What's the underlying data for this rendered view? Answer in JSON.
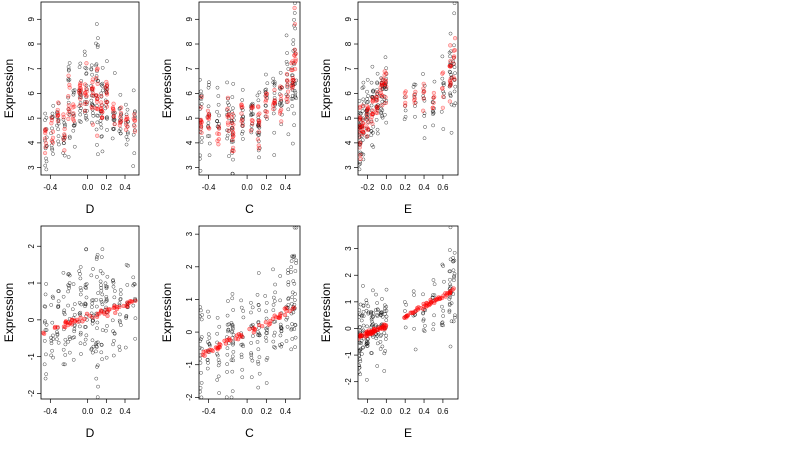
{
  "figure": {
    "background": "#ffffff",
    "colors": {
      "observed": "#000000",
      "fitted": "#ff0000"
    },
    "layout": "2x3 panel grid"
  },
  "chart_data": [
    {
      "id": "p1",
      "type": "scatter",
      "xlabel": "D",
      "ylabel": "Expression",
      "xlim": [
        -0.5,
        0.55
      ],
      "ylim": [
        2.7,
        9.7
      ],
      "xticks": [
        -0.4,
        0,
        0.2,
        0.4
      ],
      "xtick_labels": [
        "-0.4",
        "0.0",
        "0.2",
        "0.4"
      ],
      "yticks": [
        3,
        4,
        5,
        6,
        7,
        8,
        9
      ],
      "ytick_labels": [
        "3",
        "4",
        "5",
        "6",
        "7",
        "8",
        "9"
      ],
      "groups": [
        {
          "x": -0.45,
          "mean": 4.2,
          "sd": 0.8,
          "n": 14
        },
        {
          "x": -0.38,
          "mean": 4.6,
          "sd": 0.7,
          "n": 12
        },
        {
          "x": -0.32,
          "mean": 5.0,
          "sd": 0.6,
          "n": 12
        },
        {
          "x": -0.25,
          "mean": 4.4,
          "sd": 0.5,
          "n": 12
        },
        {
          "x": -0.2,
          "mean": 5.6,
          "sd": 0.9,
          "n": 15
        },
        {
          "x": -0.15,
          "mean": 5.2,
          "sd": 0.6,
          "n": 12
        },
        {
          "x": -0.08,
          "mean": 5.9,
          "sd": 0.7,
          "n": 18
        },
        {
          "x": -0.02,
          "mean": 6.0,
          "sd": 0.8,
          "n": 18
        },
        {
          "x": 0.05,
          "mean": 5.8,
          "sd": 0.8,
          "n": 18
        },
        {
          "x": 0.1,
          "mean": 6.2,
          "sd": 1.2,
          "n": 22
        },
        {
          "x": 0.15,
          "mean": 5.5,
          "sd": 0.8,
          "n": 18
        },
        {
          "x": 0.2,
          "mean": 5.8,
          "sd": 0.7,
          "n": 16
        },
        {
          "x": 0.28,
          "mean": 5.1,
          "sd": 0.6,
          "n": 14
        },
        {
          "x": 0.35,
          "mean": 5.0,
          "sd": 0.5,
          "n": 12
        },
        {
          "x": 0.42,
          "mean": 4.8,
          "sd": 0.5,
          "n": 12
        },
        {
          "x": 0.5,
          "mean": 4.8,
          "sd": 0.5,
          "n": 10
        }
      ],
      "fitted_sd": 0.3
    },
    {
      "id": "p2",
      "type": "scatter",
      "xlabel": "C",
      "ylabel": "Expression",
      "xlim": [
        -0.5,
        0.55
      ],
      "ylim": [
        2.7,
        9.7
      ],
      "xticks": [
        -0.4,
        0,
        0.2,
        0.4
      ],
      "xtick_labels": [
        "-0.4",
        "0.0",
        "0.2",
        "0.4"
      ],
      "yticks": [
        3,
        4,
        5,
        6,
        7,
        8,
        9
      ],
      "ytick_labels": [
        "3",
        "4",
        "5",
        "6",
        "7",
        "8",
        "9"
      ],
      "groups": [
        {
          "x": -0.48,
          "mean": 4.8,
          "sd": 0.8,
          "n": 18
        },
        {
          "x": -0.4,
          "mean": 5.0,
          "sd": 0.7,
          "n": 14
        },
        {
          "x": -0.3,
          "mean": 4.6,
          "sd": 0.7,
          "n": 12
        },
        {
          "x": -0.2,
          "mean": 5.0,
          "sd": 0.6,
          "n": 14
        },
        {
          "x": -0.15,
          "mean": 4.4,
          "sd": 0.9,
          "n": 22
        },
        {
          "x": -0.05,
          "mean": 5.0,
          "sd": 0.6,
          "n": 14
        },
        {
          "x": 0.05,
          "mean": 5.2,
          "sd": 0.7,
          "n": 14
        },
        {
          "x": 0.12,
          "mean": 4.8,
          "sd": 0.9,
          "n": 20
        },
        {
          "x": 0.2,
          "mean": 5.5,
          "sd": 0.6,
          "n": 14
        },
        {
          "x": 0.28,
          "mean": 5.5,
          "sd": 0.7,
          "n": 14
        },
        {
          "x": 0.35,
          "mean": 5.8,
          "sd": 0.7,
          "n": 14
        },
        {
          "x": 0.42,
          "mean": 6.2,
          "sd": 0.7,
          "n": 14
        },
        {
          "x": 0.47,
          "mean": 6.6,
          "sd": 1.1,
          "n": 18
        },
        {
          "x": 0.5,
          "mean": 7.2,
          "sd": 1.3,
          "n": 18
        }
      ],
      "fitted_sd": 0.3
    },
    {
      "id": "p3",
      "type": "scatter",
      "xlabel": "E",
      "ylabel": "Expression",
      "xlim": [
        -0.3,
        0.76
      ],
      "ylim": [
        2.7,
        9.7
      ],
      "xticks": [
        -0.2,
        0,
        0.2,
        0.4,
        0.6
      ],
      "xtick_labels": [
        "-0.2",
        "0.0",
        "0.2",
        "0.4",
        "0.6"
      ],
      "yticks": [
        3,
        4,
        5,
        6,
        7,
        8,
        9
      ],
      "ytick_labels": [
        "3",
        "4",
        "5",
        "6",
        "7",
        "8",
        "9"
      ],
      "groups": [
        {
          "x": -0.28,
          "mean": 4.5,
          "sd": 0.8,
          "n": 28
        },
        {
          "x": -0.25,
          "mean": 4.8,
          "sd": 0.7,
          "n": 18
        },
        {
          "x": -0.2,
          "mean": 5.0,
          "sd": 0.7,
          "n": 22
        },
        {
          "x": -0.15,
          "mean": 5.3,
          "sd": 0.7,
          "n": 20
        },
        {
          "x": -0.1,
          "mean": 5.6,
          "sd": 0.7,
          "n": 18
        },
        {
          "x": -0.05,
          "mean": 5.9,
          "sd": 0.7,
          "n": 18
        },
        {
          "x": -0.01,
          "mean": 6.2,
          "sd": 0.8,
          "n": 18
        },
        {
          "x": 0.2,
          "mean": 5.6,
          "sd": 0.5,
          "n": 5
        },
        {
          "x": 0.3,
          "mean": 5.8,
          "sd": 0.6,
          "n": 8
        },
        {
          "x": 0.4,
          "mean": 5.9,
          "sd": 0.6,
          "n": 10
        },
        {
          "x": 0.5,
          "mean": 5.5,
          "sd": 0.7,
          "n": 10
        },
        {
          "x": 0.6,
          "mean": 6.0,
          "sd": 0.8,
          "n": 10
        },
        {
          "x": 0.68,
          "mean": 6.6,
          "sd": 1.1,
          "n": 22
        },
        {
          "x": 0.72,
          "mean": 7.5,
          "sd": 1.2,
          "n": 14
        }
      ],
      "fitted_sd": 0.3
    },
    {
      "id": "p4",
      "type": "scatter",
      "xlabel": "D",
      "ylabel": "Expression",
      "xlim": [
        -0.5,
        0.55
      ],
      "ylim": [
        -2.15,
        2.55
      ],
      "xticks": [
        -0.4,
        0,
        0.2,
        0.4
      ],
      "xtick_labels": [
        "-0.4",
        "0.0",
        "0.2",
        "0.4"
      ],
      "yticks": [
        -2,
        -1,
        0,
        1,
        2
      ],
      "ytick_labels": [
        "-2",
        "-1",
        "0",
        "1",
        "2"
      ],
      "groups": [
        {
          "x": -0.45,
          "mean": -0.3,
          "sd": 0.8,
          "n": 14
        },
        {
          "x": -0.38,
          "mean": -0.2,
          "sd": 0.7,
          "n": 12
        },
        {
          "x": -0.32,
          "mean": -0.2,
          "sd": 0.7,
          "n": 12
        },
        {
          "x": -0.25,
          "mean": 0.0,
          "sd": 0.6,
          "n": 12
        },
        {
          "x": -0.2,
          "mean": 0.1,
          "sd": 0.8,
          "n": 15
        },
        {
          "x": -0.15,
          "mean": 0.0,
          "sd": 0.6,
          "n": 12
        },
        {
          "x": -0.08,
          "mean": 0.1,
          "sd": 0.7,
          "n": 18
        },
        {
          "x": -0.02,
          "mean": 0.1,
          "sd": 0.8,
          "n": 18
        },
        {
          "x": 0.05,
          "mean": 0.1,
          "sd": 0.8,
          "n": 18
        },
        {
          "x": 0.1,
          "mean": 0.2,
          "sd": 0.9,
          "n": 22
        },
        {
          "x": 0.15,
          "mean": 0.2,
          "sd": 0.8,
          "n": 18
        },
        {
          "x": 0.2,
          "mean": 0.3,
          "sd": 0.7,
          "n": 16
        },
        {
          "x": 0.28,
          "mean": 0.3,
          "sd": 0.6,
          "n": 14
        },
        {
          "x": 0.35,
          "mean": 0.3,
          "sd": 0.6,
          "n": 12
        },
        {
          "x": 0.42,
          "mean": 0.4,
          "sd": 0.5,
          "n": 12
        },
        {
          "x": 0.5,
          "mean": 0.4,
          "sd": 0.5,
          "n": 10
        }
      ],
      "fitted_line": {
        "x": [
          -0.48,
          0.52
        ],
        "y": [
          -0.35,
          0.5
        ]
      },
      "fitted_sd": 0.05
    },
    {
      "id": "p5",
      "type": "scatter",
      "xlabel": "C",
      "ylabel": "Expression",
      "xlim": [
        -0.5,
        0.55
      ],
      "ylim": [
        -2.05,
        3.25
      ],
      "xticks": [
        -0.4,
        0,
        0.2,
        0.4
      ],
      "xtick_labels": [
        "-0.4",
        "0.0",
        "0.2",
        "0.4"
      ],
      "yticks": [
        -2,
        -1,
        0,
        1,
        2,
        3
      ],
      "ytick_labels": [
        "-2",
        "-1",
        "0",
        "1",
        "2",
        "3"
      ],
      "groups": [
        {
          "x": -0.48,
          "mean": -0.6,
          "sd": 0.8,
          "n": 18
        },
        {
          "x": -0.4,
          "mean": -0.5,
          "sd": 0.7,
          "n": 14
        },
        {
          "x": -0.3,
          "mean": -0.4,
          "sd": 0.7,
          "n": 12
        },
        {
          "x": -0.2,
          "mean": -0.3,
          "sd": 0.6,
          "n": 14
        },
        {
          "x": -0.15,
          "mean": -0.2,
          "sd": 0.8,
          "n": 22
        },
        {
          "x": -0.05,
          "mean": -0.1,
          "sd": 0.6,
          "n": 14
        },
        {
          "x": 0.05,
          "mean": 0.1,
          "sd": 0.7,
          "n": 14
        },
        {
          "x": 0.12,
          "mean": 0.1,
          "sd": 0.9,
          "n": 20
        },
        {
          "x": 0.2,
          "mean": 0.2,
          "sd": 0.6,
          "n": 14
        },
        {
          "x": 0.28,
          "mean": 0.3,
          "sd": 0.7,
          "n": 14
        },
        {
          "x": 0.35,
          "mean": 0.4,
          "sd": 0.7,
          "n": 14
        },
        {
          "x": 0.42,
          "mean": 0.6,
          "sd": 0.7,
          "n": 14
        },
        {
          "x": 0.47,
          "mean": 0.7,
          "sd": 1.0,
          "n": 18
        },
        {
          "x": 0.5,
          "mean": 1.0,
          "sd": 1.2,
          "n": 18
        }
      ],
      "fitted_line": {
        "x": [
          -0.48,
          0.5
        ],
        "y": [
          -0.7,
          0.75
        ]
      },
      "fitted_sd": 0.05
    },
    {
      "id": "p6",
      "type": "scatter",
      "xlabel": "E",
      "ylabel": "Expression",
      "xlim": [
        -0.3,
        0.76
      ],
      "ylim": [
        -2.65,
        3.85
      ],
      "xticks": [
        -0.2,
        0,
        0.2,
        0.4,
        0.6
      ],
      "xtick_labels": [
        "-0.2",
        "0.0",
        "0.2",
        "0.4",
        "0.6"
      ],
      "yticks": [
        -2,
        -1,
        0,
        1,
        2,
        3
      ],
      "ytick_labels": [
        "-2",
        "-1",
        "0",
        "1",
        "2",
        "3"
      ],
      "groups": [
        {
          "x": -0.28,
          "mean": -0.4,
          "sd": 0.8,
          "n": 28
        },
        {
          "x": -0.25,
          "mean": -0.3,
          "sd": 0.7,
          "n": 18
        },
        {
          "x": -0.2,
          "mean": -0.2,
          "sd": 0.7,
          "n": 22
        },
        {
          "x": -0.15,
          "mean": -0.1,
          "sd": 0.7,
          "n": 20
        },
        {
          "x": -0.1,
          "mean": 0.0,
          "sd": 0.7,
          "n": 18
        },
        {
          "x": -0.05,
          "mean": 0.0,
          "sd": 0.7,
          "n": 18
        },
        {
          "x": -0.01,
          "mean": 0.1,
          "sd": 0.7,
          "n": 18
        },
        {
          "x": 0.2,
          "mean": 0.4,
          "sd": 0.5,
          "n": 5
        },
        {
          "x": 0.3,
          "mean": 0.6,
          "sd": 0.6,
          "n": 8
        },
        {
          "x": 0.4,
          "mean": 0.6,
          "sd": 0.6,
          "n": 10
        },
        {
          "x": 0.5,
          "mean": 0.8,
          "sd": 0.7,
          "n": 10
        },
        {
          "x": 0.6,
          "mean": 1.1,
          "sd": 0.8,
          "n": 10
        },
        {
          "x": 0.68,
          "mean": 1.4,
          "sd": 1.0,
          "n": 22
        },
        {
          "x": 0.72,
          "mean": 1.6,
          "sd": 1.1,
          "n": 14
        }
      ],
      "fitted_line": {
        "x": [
          -0.3,
          0.0
        ],
        "y": [
          -0.35,
          0.1
        ],
        "x2": [
          0.18,
          0.72
        ],
        "y2": [
          0.4,
          1.45
        ]
      },
      "fitted_sd": 0.05
    }
  ]
}
